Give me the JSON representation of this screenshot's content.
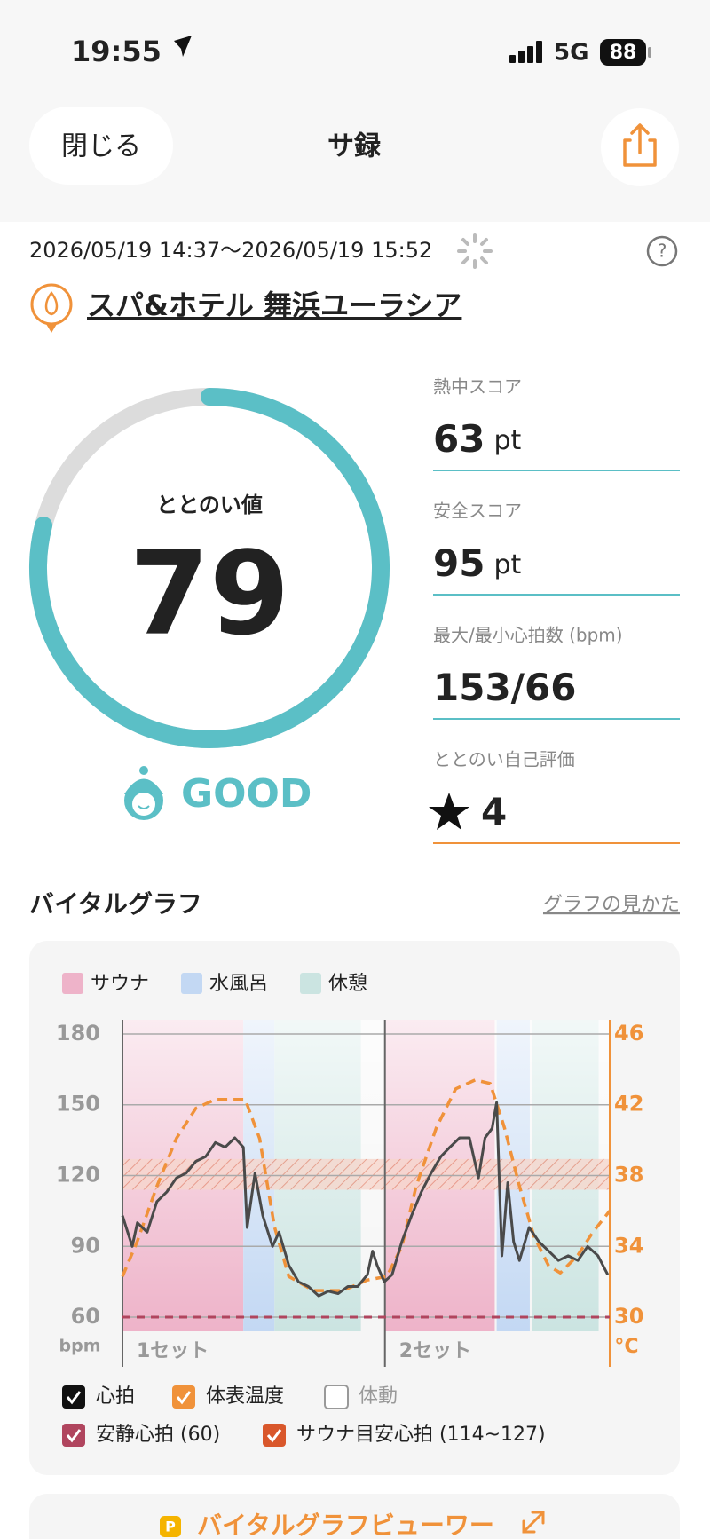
{
  "status_bar": {
    "time": "19:55",
    "network": "5G",
    "battery": 88
  },
  "header": {
    "close": "閉じる",
    "title": "サ録"
  },
  "session": {
    "period": "2026/05/19 14:37～2026/05/19 15:52",
    "facility": "スパ&ホテル 舞浜ユーラシア"
  },
  "score": {
    "label": "ととのい値",
    "value": 79,
    "range": [
      0,
      100
    ],
    "rating": "GOOD"
  },
  "stats": [
    {
      "label": "熱中スコア",
      "value": 63,
      "unit": "pt"
    },
    {
      "label": "安全スコア",
      "value": 95,
      "unit": "pt"
    },
    {
      "label": "最大/最小心拍数 (bpm)",
      "value": "153/66"
    },
    {
      "label": "ととのい自己評価",
      "value": 4
    }
  ],
  "chart_data": {
    "type": "line",
    "title": "バイタルグラフ",
    "guide_link": "グラフの見かた",
    "xlim": [
      0,
      75
    ],
    "ylim": [
      54,
      186
    ],
    "yticks": [
      60,
      90,
      120,
      150,
      180
    ],
    "y2lim": [
      29.2,
      46.8
    ],
    "y2ticks": [
      30,
      34,
      38,
      42,
      46
    ],
    "y_unit": "bpm",
    "y2_unit": "°C",
    "grid": true,
    "zones": [
      {
        "name": "サウナ",
        "color": "#eeb3c9",
        "ranges": [
          [
            0,
            18.6
          ],
          [
            40.4,
            57.3
          ]
        ]
      },
      {
        "name": "水風呂",
        "color": "#c3d8f3",
        "ranges": [
          [
            18.6,
            23.4
          ],
          [
            57.6,
            62.7
          ]
        ]
      },
      {
        "name": "休憩",
        "color": "#cbe4e1",
        "ranges": [
          [
            23.4,
            36.7
          ],
          [
            63,
            73.3
          ]
        ]
      }
    ],
    "set_labels": [
      "1セット",
      "2セット"
    ],
    "series": [
      {
        "name": "心拍",
        "color": "#4a4a4a",
        "x": [
          0,
          0.8,
          1.5,
          2.3,
          3.8,
          5.3,
          6.8,
          8.3,
          9.8,
          11.3,
          12.8,
          14.3,
          15.8,
          17.3,
          18.6,
          19.2,
          20.4,
          21.6,
          23.1,
          24.1,
          25.6,
          27.1,
          28.6,
          30.2,
          31.7,
          33.2,
          34.7,
          36.2,
          37.7,
          38.5,
          39.2,
          40.3,
          41.5,
          43,
          44.5,
          46,
          47.5,
          49,
          50.4,
          51.9,
          53.4,
          54.8,
          55.8,
          56.9,
          57.6,
          58.4,
          59.3,
          60.2,
          61.1,
          62.6,
          64.1,
          65.6,
          67.1,
          68.6,
          70.1,
          71.6,
          73.2,
          74.7
        ],
        "values": [
          103,
          96,
          90,
          100,
          96,
          109,
          113,
          119,
          121,
          126,
          128,
          134,
          132,
          136,
          132,
          98,
          121,
          103,
          90,
          96,
          82,
          75,
          73,
          69,
          71,
          70,
          73,
          73,
          78,
          88,
          82,
          75,
          78,
          92,
          103,
          113,
          121,
          128,
          132,
          136,
          136,
          119,
          136,
          140,
          151,
          86,
          117,
          92,
          84,
          98,
          92,
          88,
          84,
          86,
          84,
          90,
          86,
          78
        ]
      },
      {
        "name": "体表温度",
        "color": "#f0923a",
        "axis": "y2",
        "dashed": true,
        "x": [
          0,
          2.3,
          5.3,
          8.3,
          11.3,
          14.3,
          18.9,
          21.1,
          23.4,
          25.6,
          29.4,
          33.9,
          37.7,
          40.7,
          43,
          45.2,
          48.3,
          51.3,
          54.3,
          56.6,
          58.8,
          61.1,
          63.3,
          65.6,
          67.4,
          70.1,
          72.4,
          75
        ],
        "values": [
          32.3,
          34.3,
          37.4,
          40.1,
          41.8,
          42.3,
          42.3,
          40.1,
          35.1,
          32.3,
          31.5,
          31.5,
          32.1,
          32.3,
          34,
          37.4,
          40.7,
          42.9,
          43.4,
          43.2,
          40.7,
          37.4,
          34.6,
          32.9,
          32.5,
          33.5,
          34.8,
          36
        ]
      }
    ],
    "inactive_series": "体動",
    "resting_hr": {
      "label": "安静心拍 (60)",
      "value": 60,
      "color": "#b0455e"
    },
    "target_hr": {
      "label": "サウナ目安心拍 (114~127)",
      "range": [
        114,
        127
      ],
      "color": "#d9572b"
    }
  },
  "viewer": {
    "badge": "P",
    "label": "バイタルグラフビューワー"
  }
}
